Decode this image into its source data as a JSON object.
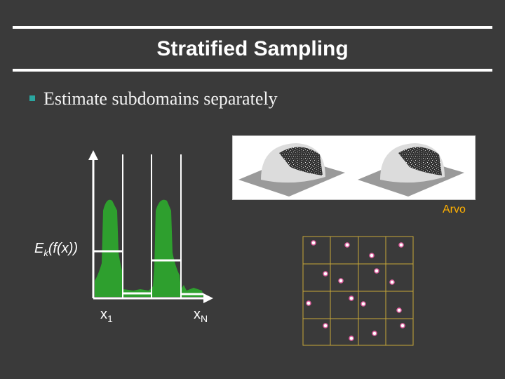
{
  "title": "Stratified Sampling",
  "bullet": "Estimate subdomains separately",
  "figure": {
    "credit": "Arvo",
    "label_estimate_base": "E",
    "label_estimate_sub": "k",
    "label_estimate_rest": "(f(x))",
    "label_x1_base": "x",
    "label_x1_sub": "1",
    "label_xn_base": "x",
    "label_xn_sub": "N"
  },
  "colors": {
    "background": "#3a3a3a",
    "curve_fill": "#2e9f2e",
    "grid_line": "#c8a838",
    "sample_point": "#e060a0",
    "credit": "#ffb000",
    "bullet": "#2aa6a0"
  }
}
